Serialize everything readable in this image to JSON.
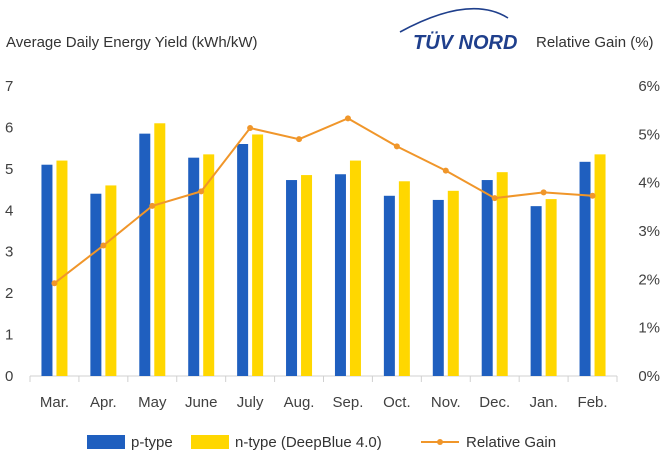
{
  "chart_data": {
    "type": "bar",
    "title_left": "Average Daily Energy Yield  (kWh/kW)",
    "title_right": "Relative Gain  (%)",
    "logo_text": "TÜV NORD",
    "categories": [
      "Mar.",
      "Apr.",
      "May",
      "June",
      "July",
      "Aug.",
      "Sep.",
      "Oct.",
      "Nov.",
      "Dec.",
      "Jan.",
      "Feb."
    ],
    "series": [
      {
        "name": "p-type",
        "type": "bar",
        "axis": "left",
        "color": "#1f5fbf",
        "values": [
          5.1,
          4.4,
          5.85,
          5.27,
          5.6,
          4.73,
          4.87,
          4.35,
          4.25,
          4.73,
          4.1,
          5.17
        ]
      },
      {
        "name": "n-type (DeepBlue 4.0)",
        "type": "bar",
        "axis": "left",
        "color": "#ffd700",
        "values": [
          5.2,
          4.6,
          6.1,
          5.35,
          5.83,
          4.85,
          5.2,
          4.7,
          4.47,
          4.92,
          4.27,
          5.35
        ]
      },
      {
        "name": "Relative Gain",
        "type": "line",
        "axis": "right",
        "unit": "%",
        "color": "#f0962a",
        "values": [
          1.92,
          2.7,
          3.52,
          3.82,
          5.13,
          4.9,
          5.33,
          4.75,
          4.25,
          3.68,
          3.8,
          3.73
        ]
      }
    ],
    "y_left": {
      "min": 0,
      "max": 7,
      "ticks": [
        "0",
        "1",
        "2",
        "3",
        "4",
        "5",
        "6",
        "7"
      ]
    },
    "y_right": {
      "min": 0,
      "max": 6,
      "ticks": [
        "0%",
        "1%",
        "2%",
        "3%",
        "4%",
        "5%",
        "6%"
      ]
    },
    "grid": false,
    "legend_position": "bottom"
  }
}
